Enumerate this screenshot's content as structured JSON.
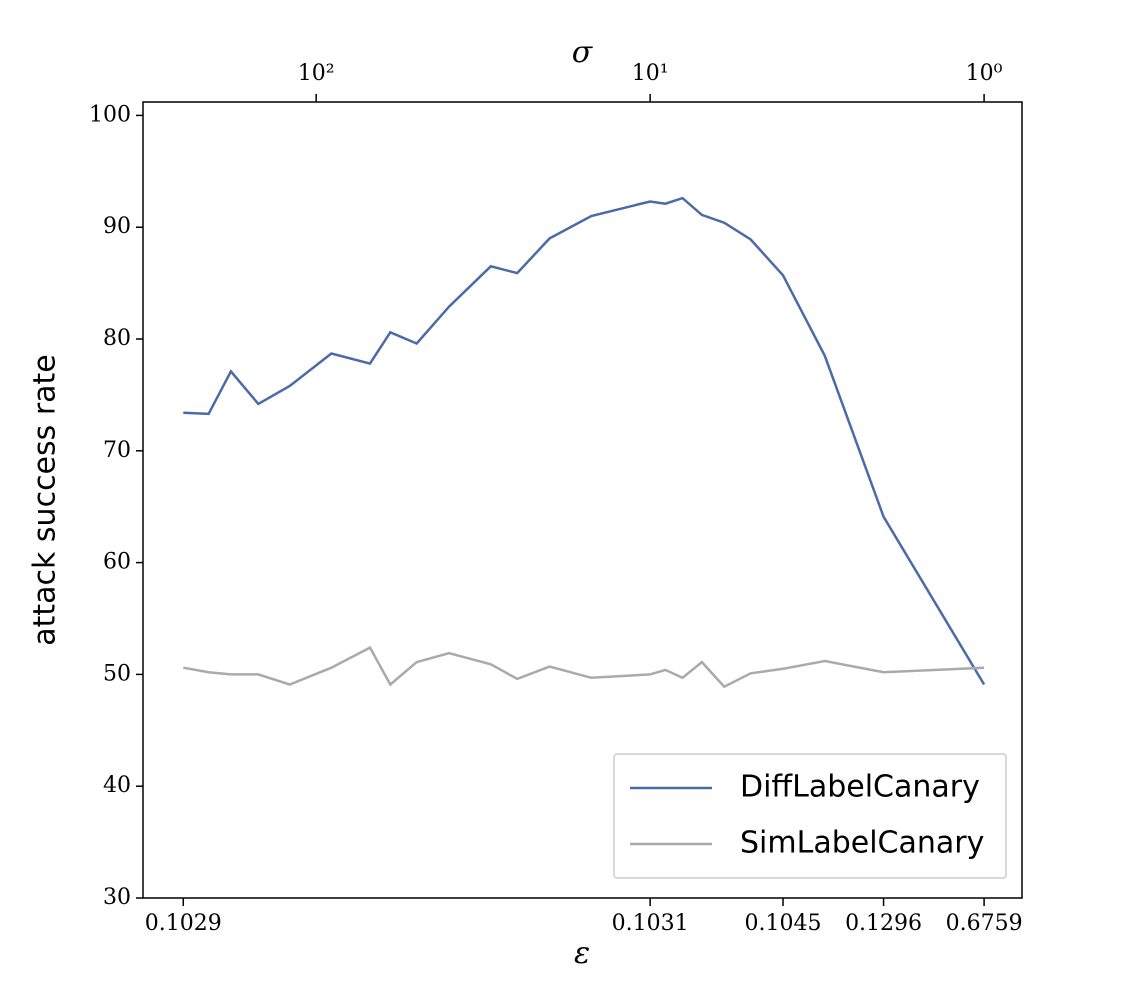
{
  "chart_data": {
    "type": "line",
    "xlabel": "σ",
    "x2label": "ε",
    "ylabel": "attack success rate",
    "xscale": "log",
    "x": [
      250,
      210,
      180,
      149,
      120,
      90,
      69,
      60,
      50,
      40,
      30,
      25,
      20,
      15,
      10,
      9,
      8,
      7,
      6,
      5,
      4,
      3,
      2,
      1
    ],
    "series": [
      {
        "name": "DiffLabelCanary",
        "color": "#4c6aa8",
        "values": [
          73.4,
          73.3,
          77.1,
          74.2,
          75.8,
          78.7,
          77.8,
          80.6,
          79.6,
          82.9,
          86.5,
          85.9,
          89.0,
          91.0,
          92.3,
          92.1,
          92.6,
          91.1,
          90.4,
          88.9,
          85.7,
          78.5,
          64.1,
          49.1
        ]
      },
      {
        "name": "SimLabelCanary",
        "color": "#aaaaaa",
        "values": [
          50.6,
          50.2,
          50.0,
          50.0,
          49.1,
          50.6,
          52.4,
          49.1,
          51.1,
          51.9,
          50.9,
          49.6,
          50.7,
          49.7,
          50.0,
          50.4,
          49.7,
          51.1,
          48.9,
          50.1,
          50.5,
          51.2,
          50.2,
          50.6
        ]
      }
    ],
    "xlim": [
      330,
      0.77
    ],
    "xticks": [
      {
        "value": 100,
        "label": "10²"
      },
      {
        "value": 10,
        "label": "10¹"
      },
      {
        "value": 1,
        "label": "10⁰"
      }
    ],
    "x2ticks": [
      {
        "value": 250,
        "label": "0.1029"
      },
      {
        "value": 10,
        "label": "0.1031"
      },
      {
        "value": 4,
        "label": "0.1045"
      },
      {
        "value": 2,
        "label": "0.1296"
      },
      {
        "value": 1,
        "label": "0.6759"
      }
    ],
    "ylim": [
      30,
      101.2
    ],
    "yticks": [
      30,
      40,
      50,
      60,
      70,
      80,
      90,
      100
    ],
    "legend": "lower right"
  }
}
